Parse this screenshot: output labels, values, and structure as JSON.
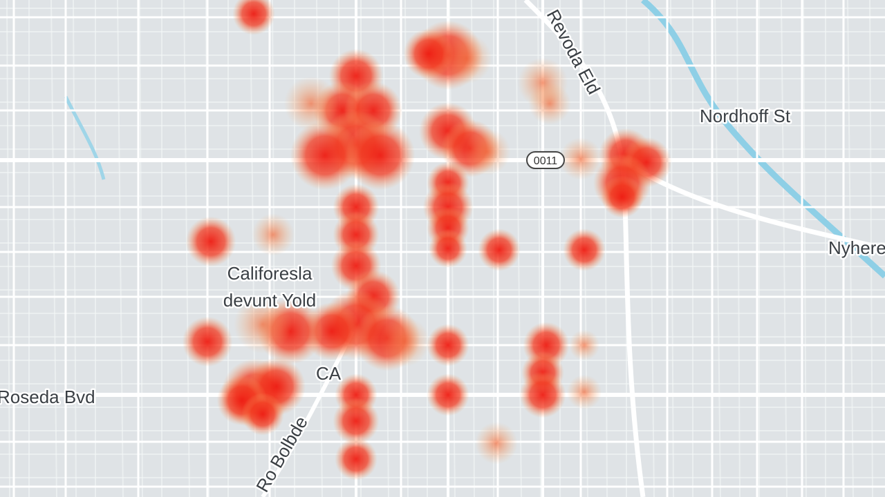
{
  "map": {
    "labels": [
      {
        "text": "Revoda Eld"
      },
      {
        "text": "Nordhoff St"
      },
      {
        "text": "Califoresla"
      },
      {
        "text": "devunt Yold"
      },
      {
        "text": "CA"
      },
      {
        "text": "Roseda Bvd"
      },
      {
        "text": "Nyhere"
      },
      {
        "text": "Ro Bolbde"
      }
    ],
    "shield": "0011"
  }
}
